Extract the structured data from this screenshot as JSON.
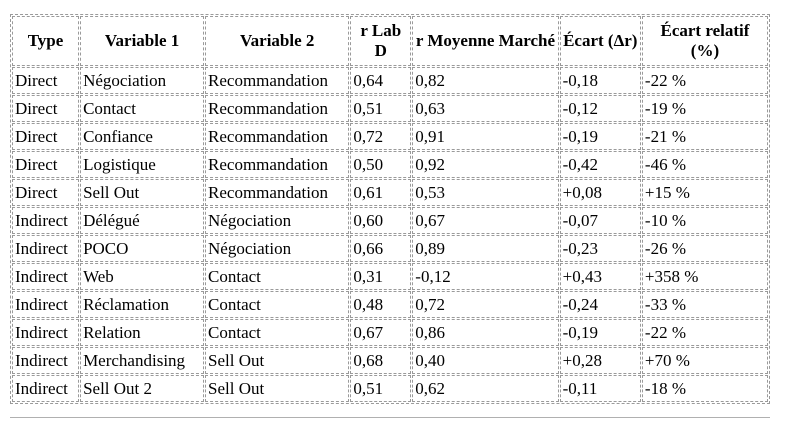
{
  "table": {
    "columns": [
      "Type",
      "Variable 1",
      "Variable 2",
      "r Lab D",
      "r Moyenne Marché",
      "Écart (Δr)",
      "Écart relatif (%)"
    ],
    "rows": [
      [
        "Direct",
        "Négociation",
        "Recommandation",
        "0,64",
        "0,82",
        "-0,18",
        "-22 %"
      ],
      [
        "Direct",
        "Contact",
        "Recommandation",
        "0,51",
        "0,63",
        "-0,12",
        "-19 %"
      ],
      [
        "Direct",
        "Confiance",
        "Recommandation",
        "0,72",
        "0,91",
        "-0,19",
        "-21 %"
      ],
      [
        "Direct",
        "Logistique",
        "Recommandation",
        "0,50",
        "0,92",
        "-0,42",
        "-46 %"
      ],
      [
        "Direct",
        "Sell Out",
        "Recommandation",
        "0,61",
        "0,53",
        "+0,08",
        "+15 %"
      ],
      [
        "Indirect",
        "Délégué",
        "Négociation",
        "0,60",
        "0,67",
        "-0,07",
        "-10 %"
      ],
      [
        "Indirect",
        "POCO",
        "Négociation",
        "0,66",
        "0,89",
        "-0,23",
        "-26 %"
      ],
      [
        "Indirect",
        "Web",
        "Contact",
        "0,31",
        "-0,12",
        "+0,43",
        "+358 %"
      ],
      [
        "Indirect",
        "Réclamation",
        "Contact",
        "0,48",
        "0,72",
        "-0,24",
        "-33 %"
      ],
      [
        "Indirect",
        "Relation",
        "Contact",
        "0,67",
        "0,86",
        "-0,19",
        "-22 %"
      ],
      [
        "Indirect",
        "Merchandising",
        "Sell Out",
        "0,68",
        "0,40",
        "+0,28",
        "+70 %"
      ],
      [
        "Indirect",
        "Sell Out 2",
        "Sell Out",
        "0,51",
        "0,62",
        "-0,11",
        "-18 %"
      ]
    ]
  }
}
